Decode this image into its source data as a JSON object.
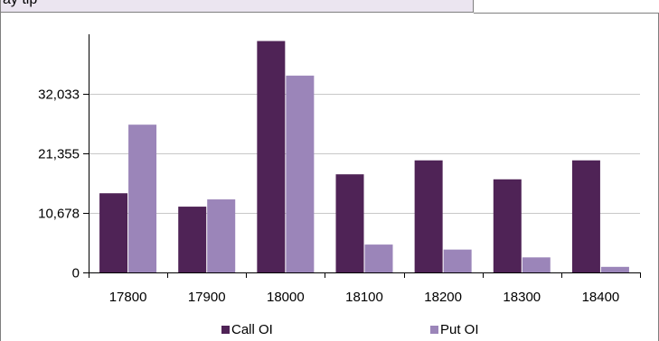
{
  "header": {
    "text": "ay tip"
  },
  "colors": {
    "call": "#4f2356",
    "put": "#9b85b9",
    "grid": "#c8c8c8",
    "axis": "#000000"
  },
  "chart_data": {
    "type": "bar",
    "categories": [
      "17800",
      "17900",
      "18000",
      "18100",
      "18200",
      "18300",
      "18400"
    ],
    "series": [
      {
        "name": "Call OI",
        "values": [
          14200,
          11800,
          41500,
          17600,
          20100,
          16700,
          20100
        ]
      },
      {
        "name": "Put OI",
        "values": [
          26500,
          13100,
          35300,
          5000,
          4100,
          2700,
          1000
        ]
      }
    ],
    "yticks": [
      0,
      10678,
      21355,
      32033
    ],
    "ytick_labels": [
      "0",
      "10,678",
      "21,355",
      "32,033"
    ],
    "ylim": [
      0,
      44000
    ],
    "grid": true,
    "legend": "bottom"
  }
}
